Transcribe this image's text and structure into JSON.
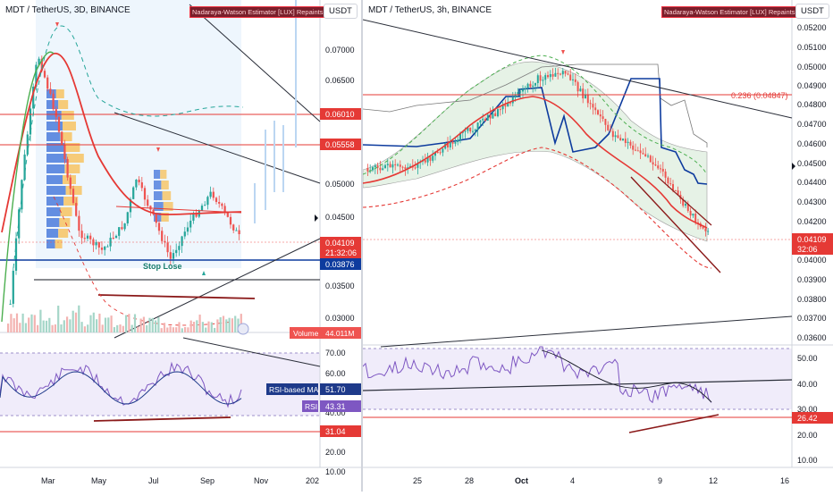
{
  "left_chart": {
    "title": "MDT / TetherUS, 3D, BINANCE",
    "indicator_badge": "Nadaraya-Watson Estimator [LUX] Repaints",
    "currency": "USDT",
    "price_axis_ticks": [
      "0.07000",
      "0.06500",
      "0.05000",
      "0.04500",
      "0.03500",
      "0.03000"
    ],
    "price_labels": {
      "level_1": "0.06010",
      "level_2": "0.05558",
      "current_price": "0.04109",
      "countdown": "21:32:06",
      "support": "0.03876"
    },
    "stop_loss_label": "Stop Lose",
    "volume_label": "Volume",
    "volume_value": "44.011M",
    "rsi_axis_ticks": [
      "70.00",
      "60.00",
      "40.00",
      "20.00",
      "10.00"
    ],
    "rsi_ma_label": "RSI-based MA",
    "rsi_ma_value": "51.70",
    "rsi_label": "RSI",
    "rsi_value": "43.31",
    "rsi_low_value": "31.04",
    "time_axis_ticks": [
      "Mar",
      "May",
      "Jul",
      "Sep",
      "Nov",
      "202"
    ]
  },
  "right_chart": {
    "title": "MDT / TetherUS, 3h, BINANCE",
    "indicator_badge": "Nadaraya-Watson Estimator [LUX] Repaints",
    "currency": "USDT",
    "price_axis_ticks": [
      "0.05200",
      "0.05100",
      "0.05000",
      "0.04900",
      "0.04800",
      "0.04700",
      "0.04600",
      "0.04500",
      "0.04400",
      "0.04300",
      "0.04200",
      "0.04000",
      "0.03900",
      "0.03800",
      "0.03700",
      "0.03600"
    ],
    "fib_label": "0.236 (0.04847)",
    "current_price": "0.04109",
    "countdown": "32:06",
    "rsi_axis_ticks": [
      "50.00",
      "40.00",
      "30.00",
      "20.00",
      "10.00"
    ],
    "rsi_low_value": "26.42",
    "time_axis_ticks": [
      "25",
      "28",
      "Oct",
      "4",
      "9",
      "12",
      "16"
    ]
  },
  "colors": {
    "up": "#26a69a",
    "down": "#ef5350",
    "red_line": "#e53935",
    "blue_line": "#0d3b9e",
    "rsi_line": "#7e57c2",
    "rsi_band": "#f0ecfa",
    "green_cloud": "#e6f2e6"
  },
  "chart_data": [
    {
      "type": "line",
      "title": "MDT / TetherUS, 3D, BINANCE",
      "xlabel": "",
      "ylabel": "USDT",
      "ylim": [
        0.028,
        0.075
      ],
      "x": [
        "Mar",
        "May",
        "Jul",
        "Sep",
        "Nov"
      ],
      "series": [
        {
          "values": [
            0.066,
            0.04,
            0.046,
            0.044,
            0.041
          ]
        }
      ],
      "horizontal_levels": [
        0.0601,
        0.05558,
        0.03876
      ],
      "last_price": 0.04109,
      "grid": false
    },
    {
      "type": "line",
      "title": "MDT / TetherUS, 3h, BINANCE",
      "xlabel": "",
      "ylabel": "USDT",
      "ylim": [
        0.0355,
        0.0525
      ],
      "x": [
        "25",
        "28",
        "Oct",
        "4",
        "9",
        "12"
      ],
      "series": [
        {
          "values": [
            0.0452,
            0.0472,
            0.0495,
            0.0498,
            0.0435,
            0.0411
          ]
        }
      ],
      "horizontal_levels": [
        0.04847
      ],
      "last_price": 0.04109,
      "grid": false
    }
  ]
}
